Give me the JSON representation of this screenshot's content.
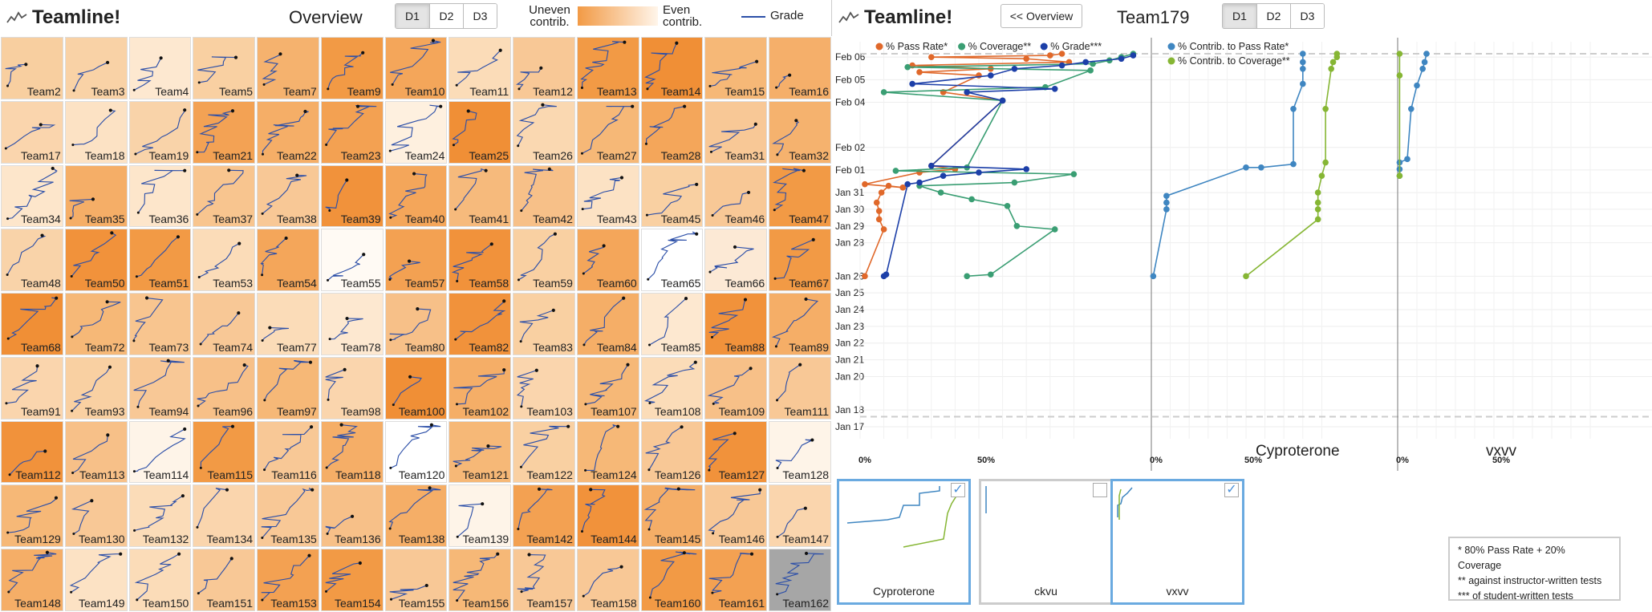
{
  "overview": {
    "brand": "Teamline!",
    "title": "Overview",
    "tabs": [
      "D1",
      "D2",
      "D3"
    ],
    "active_tab": "D1",
    "legend": {
      "uneven": "Uneven contrib.",
      "even": "Even contrib.",
      "grade": "Grade"
    },
    "teams": [
      {
        "name": "Team2",
        "c": "#f8cfa0"
      },
      {
        "name": "Team3",
        "c": "#f9d2a6"
      },
      {
        "name": "Team4",
        "c": "#fde8d0"
      },
      {
        "name": "Team5",
        "c": "#f9d0a2"
      },
      {
        "name": "Team7",
        "c": "#f5b26e"
      },
      {
        "name": "Team9",
        "c": "#f29a45"
      },
      {
        "name": "Team10",
        "c": "#f4a65a"
      },
      {
        "name": "Team11",
        "c": "#fbdcb8"
      },
      {
        "name": "Team12",
        "c": "#f8c896"
      },
      {
        "name": "Team13",
        "c": "#f29a45"
      },
      {
        "name": "Team14",
        "c": "#f08f36"
      },
      {
        "name": "Team15",
        "c": "#f6b877"
      },
      {
        "name": "Team16",
        "c": "#f5af6a"
      },
      {
        "name": "Team17",
        "c": "#fad5ad"
      },
      {
        "name": "Team18",
        "c": "#fce2c4"
      },
      {
        "name": "Team19",
        "c": "#f9d3a9"
      },
      {
        "name": "Team21",
        "c": "#f3a254"
      },
      {
        "name": "Team22",
        "c": "#f5ae67"
      },
      {
        "name": "Team23",
        "c": "#f3a152"
      },
      {
        "name": "Team24",
        "c": "#fef0df"
      },
      {
        "name": "Team25",
        "c": "#f08f36"
      },
      {
        "name": "Team26",
        "c": "#fad8b1"
      },
      {
        "name": "Team27",
        "c": "#f6b877"
      },
      {
        "name": "Team28",
        "c": "#f4a65a"
      },
      {
        "name": "Team31",
        "c": "#f8c896"
      },
      {
        "name": "Team32",
        "c": "#f5b26e"
      },
      {
        "name": "Team34",
        "c": "#fde6cb"
      },
      {
        "name": "Team35",
        "c": "#f5ae67"
      },
      {
        "name": "Team36",
        "c": "#fde6cb"
      },
      {
        "name": "Team37",
        "c": "#f8c58f"
      },
      {
        "name": "Team38",
        "c": "#f8c896"
      },
      {
        "name": "Team39",
        "c": "#f1923b"
      },
      {
        "name": "Team40",
        "c": "#f4a65a"
      },
      {
        "name": "Team41",
        "c": "#f6ba7c"
      },
      {
        "name": "Team42",
        "c": "#f7c088"
      },
      {
        "name": "Team43",
        "c": "#fce2c4"
      },
      {
        "name": "Team45",
        "c": "#f9d0a2"
      },
      {
        "name": "Team46",
        "c": "#f8c896"
      },
      {
        "name": "Team47",
        "c": "#f29a45"
      },
      {
        "name": "Team48",
        "c": "#f9d3a9"
      },
      {
        "name": "Team50",
        "c": "#f1923b"
      },
      {
        "name": "Team51",
        "c": "#f29a45"
      },
      {
        "name": "Team53",
        "c": "#fbdcb8"
      },
      {
        "name": "Team54",
        "c": "#f4a65a"
      },
      {
        "name": "Team55",
        "c": "#fffaf4"
      },
      {
        "name": "Team57",
        "c": "#f3a152"
      },
      {
        "name": "Team58",
        "c": "#f1923b"
      },
      {
        "name": "Team59",
        "c": "#f9d0a2"
      },
      {
        "name": "Team60",
        "c": "#f4a65a"
      },
      {
        "name": "Team65",
        "c": "#ffffff"
      },
      {
        "name": "Team66",
        "c": "#fce9d5"
      },
      {
        "name": "Team67",
        "c": "#f29a45"
      },
      {
        "name": "Team68",
        "c": "#f08f36"
      },
      {
        "name": "Team72",
        "c": "#f6b877"
      },
      {
        "name": "Team73",
        "c": "#f8c58f"
      },
      {
        "name": "Team74",
        "c": "#f8c896"
      },
      {
        "name": "Team77",
        "c": "#fbdcb8"
      },
      {
        "name": "Team78",
        "c": "#fde8d0"
      },
      {
        "name": "Team80",
        "c": "#f7c088"
      },
      {
        "name": "Team82",
        "c": "#f1923b"
      },
      {
        "name": "Team83",
        "c": "#f9d0a2"
      },
      {
        "name": "Team84",
        "c": "#f5ae67"
      },
      {
        "name": "Team85",
        "c": "#fde8d0"
      },
      {
        "name": "Team88",
        "c": "#f1923b"
      },
      {
        "name": "Team89",
        "c": "#f5ae67"
      },
      {
        "name": "Team91",
        "c": "#fad5ad"
      },
      {
        "name": "Team93",
        "c": "#f9d0a2"
      },
      {
        "name": "Team94",
        "c": "#f8c896"
      },
      {
        "name": "Team96",
        "c": "#f7c088"
      },
      {
        "name": "Team97",
        "c": "#f6b877"
      },
      {
        "name": "Team98",
        "c": "#fad5ad"
      },
      {
        "name": "Team100",
        "c": "#f08f36"
      },
      {
        "name": "Team102",
        "c": "#f5ae67"
      },
      {
        "name": "Team103",
        "c": "#fad5ad"
      },
      {
        "name": "Team107",
        "c": "#f6b877"
      },
      {
        "name": "Team108",
        "c": "#fbdcb8"
      },
      {
        "name": "Team109",
        "c": "#f7c088"
      },
      {
        "name": "Team111",
        "c": "#f8c896"
      },
      {
        "name": "Team112",
        "c": "#f1923b"
      },
      {
        "name": "Team113",
        "c": "#f7c088"
      },
      {
        "name": "Team114",
        "c": "#fef4e8"
      },
      {
        "name": "Team115",
        "c": "#f29a45"
      },
      {
        "name": "Team116",
        "c": "#f8c896"
      },
      {
        "name": "Team118",
        "c": "#f5ae67"
      },
      {
        "name": "Team120",
        "c": "#ffffff"
      },
      {
        "name": "Team121",
        "c": "#f6b877"
      },
      {
        "name": "Team122",
        "c": "#f9d0a2"
      },
      {
        "name": "Team124",
        "c": "#f6b877"
      },
      {
        "name": "Team126",
        "c": "#f8c896"
      },
      {
        "name": "Team127",
        "c": "#f1923b"
      },
      {
        "name": "Team128",
        "c": "#fef4e8"
      },
      {
        "name": "Team129",
        "c": "#f6b877"
      },
      {
        "name": "Team130",
        "c": "#f8c896"
      },
      {
        "name": "Team132",
        "c": "#fbdcb8"
      },
      {
        "name": "Team134",
        "c": "#fad5ad"
      },
      {
        "name": "Team135",
        "c": "#f8c896"
      },
      {
        "name": "Team136",
        "c": "#f7c088"
      },
      {
        "name": "Team138",
        "c": "#f5ae67"
      },
      {
        "name": "Team139",
        "c": "#fef4e8"
      },
      {
        "name": "Team142",
        "c": "#f3a152"
      },
      {
        "name": "Team144",
        "c": "#f1923b"
      },
      {
        "name": "Team145",
        "c": "#f5ae67"
      },
      {
        "name": "Team146",
        "c": "#f8c896"
      },
      {
        "name": "Team147",
        "c": "#fad5ad"
      },
      {
        "name": "Team148",
        "c": "#f5ae67"
      },
      {
        "name": "Team149",
        "c": "#fce2c4"
      },
      {
        "name": "Team150",
        "c": "#fbdcb8"
      },
      {
        "name": "Team151",
        "c": "#f8c896"
      },
      {
        "name": "Team153",
        "c": "#f3a152"
      },
      {
        "name": "Team154",
        "c": "#f29a45"
      },
      {
        "name": "Team155",
        "c": "#f8c896"
      },
      {
        "name": "Team156",
        "c": "#f6b877"
      },
      {
        "name": "Team157",
        "c": "#f8c896"
      },
      {
        "name": "Team158",
        "c": "#f8c896"
      },
      {
        "name": "Team160",
        "c": "#f29a45"
      },
      {
        "name": "Team161",
        "c": "#f3a152"
      },
      {
        "name": "Team162",
        "c": "#a6a6a6"
      }
    ]
  },
  "detail": {
    "brand": "Teamline!",
    "back_label": "<< Overview",
    "team": "Team179",
    "tabs": [
      "D1",
      "D2",
      "D3"
    ],
    "active_tab": "D1",
    "colors": {
      "pass": "#e0682a",
      "coverage": "#3a9e73",
      "grade": "#1c3fa8",
      "contrib_pass": "#3f86c1",
      "contrib_cov": "#86b634"
    },
    "thumbs": [
      {
        "name": "Cyproterone",
        "checked": true
      },
      {
        "name": "ckvu",
        "checked": false
      },
      {
        "name": "vxvv",
        "checked": true
      }
    ],
    "notes": [
      "* 80% Pass Rate + 20% Coverage",
      "** against instructor-written tests",
      "*** of student-written tests"
    ]
  },
  "chart_data": [
    {
      "type": "line",
      "title": "",
      "y_axis_dates": [
        "Jan 17",
        "Jan 18",
        "Jan 20",
        "Jan 21",
        "Jan 22",
        "Jan 23",
        "Jan 24",
        "Jan 25",
        "Jan 26",
        "Jan 28",
        "Jan 29",
        "Jan 30",
        "Jan 31",
        "Feb 01",
        "Feb 02",
        "Feb 04",
        "Feb 05",
        "Feb 06"
      ],
      "x_ticks": [
        "0%",
        "50%"
      ],
      "panels": [
        {
          "name": "",
          "legend": [
            "% Pass Rate*",
            "% Coverage**",
            "% Grade***"
          ],
          "series": [
            {
              "name": "% Pass Rate*",
              "color_key": "pass",
              "points": [
                [
                  2,
                  26.0
                ],
                [
                  10,
                  28.8
                ],
                [
                  8,
                  29.4
                ],
                [
                  8,
                  29.9
                ],
                [
                  7,
                  30.4
                ],
                [
                  9,
                  31.0
                ],
                [
                  12,
                  31.4
                ],
                [
                  18,
                  31.3
                ],
                [
                  2,
                  31.5
                ],
                [
                  25,
                  32.2
                ],
                [
                  40,
                  32.4
                ],
                [
                  30,
                  32.6
                ],
                [
                  60,
                  36.5
                ],
                [
                  35,
                  37.0
                ],
                [
                  50,
                  38.0
                ],
                [
                  25,
                  38.2
                ],
                [
                  55,
                  38.4
                ],
                [
                  22,
                  38.6
                ],
                [
                  88,
                  38.8
                ],
                [
                  70,
                  39.0
                ],
                [
                  30,
                  39.1
                ],
                [
                  80,
                  39.2
                ],
                [
                  85,
                  39.3
                ]
              ]
            },
            {
              "name": "% Coverage**",
              "color_key": "coverage",
              "points": [
                [
                  45,
                  26.0
                ],
                [
                  55,
                  26.1
                ],
                [
                  82,
                  28.8
                ],
                [
                  66,
                  29.0
                ],
                [
                  62,
                  30.2
                ],
                [
                  47,
                  30.6
                ],
                [
                  34,
                  31.0
                ],
                [
                  25,
                  31.4
                ],
                [
                  65,
                  31.6
                ],
                [
                  90,
                  32.1
                ],
                [
                  15,
                  32.3
                ],
                [
                  45,
                  32.5
                ],
                [
                  60,
                  36.5
                ],
                [
                  10,
                  37.0
                ],
                [
                  78,
                  37.3
                ],
                [
                  97,
                  38.3
                ],
                [
                  20,
                  38.5
                ],
                [
                  98,
                  38.7
                ],
                [
                  105,
                  38.9
                ],
                [
                  110,
                  39.1
                ],
                [
                  115,
                  39.3
                ]
              ]
            },
            {
              "name": "% Grade***",
              "color_key": "grade",
              "points": [
                [
                  10,
                  26.0
                ],
                [
                  11,
                  26.1
                ],
                [
                  20,
                  31.5
                ],
                [
                  25,
                  31.6
                ],
                [
                  35,
                  32.0
                ],
                [
                  50,
                  32.2
                ],
                [
                  70,
                  32.4
                ],
                [
                  30,
                  32.6
                ],
                [
                  60,
                  36.5
                ],
                [
                  45,
                  37.0
                ],
                [
                  82,
                  37.2
                ],
                [
                  22,
                  37.5
                ],
                [
                  55,
                  38.0
                ],
                [
                  65,
                  38.4
                ],
                [
                  85,
                  38.6
                ],
                [
                  95,
                  38.8
                ],
                [
                  110,
                  39.0
                ],
                [
                  115,
                  39.2
                ]
              ]
            }
          ]
        },
        {
          "name": "Cyproterone",
          "legend": [
            "% Contrib. to Pass Rate*",
            "% Contrib. to Coverage**"
          ],
          "series": [
            {
              "name": "% Contrib. to Pass Rate*",
              "color_key": "contrib_pass",
              "points": [
                [
                  1,
                  26.0
                ],
                [
                  8,
                  30.0
                ],
                [
                  8,
                  30.4
                ],
                [
                  8,
                  30.8
                ],
                [
                  50,
                  32.5
                ],
                [
                  58,
                  32.5
                ],
                [
                  75,
                  32.7
                ],
                [
                  75,
                  36.0
                ],
                [
                  80,
                  37.5
                ],
                [
                  80,
                  38.4
                ],
                [
                  80,
                  38.8
                ],
                [
                  80,
                  39.3
                ]
              ]
            },
            {
              "name": "% Contrib. to Coverage**",
              "color_key": "contrib_cov",
              "points": [
                [
                  50,
                  26.0
                ],
                [
                  88,
                  29.4
                ],
                [
                  88,
                  30.0
                ],
                [
                  88,
                  30.4
                ],
                [
                  88,
                  31.0
                ],
                [
                  90,
                  32.0
                ],
                [
                  92,
                  32.8
                ],
                [
                  92,
                  36.0
                ],
                [
                  95,
                  38.4
                ],
                [
                  96,
                  38.8
                ],
                [
                  98,
                  39.1
                ],
                [
                  98,
                  39.3
                ]
              ]
            }
          ]
        },
        {
          "name": "vxvv",
          "legend": [],
          "series": [
            {
              "name": "",
              "color_key": "contrib_pass",
              "points": [
                [
                  1,
                  32.0
                ],
                [
                  1,
                  32.4
                ],
                [
                  1,
                  32.8
                ],
                [
                  5,
                  33.0
                ],
                [
                  7,
                  36.0
                ],
                [
                  10,
                  37.4
                ],
                [
                  13,
                  38.4
                ],
                [
                  14,
                  38.8
                ],
                [
                  15,
                  39.3
                ]
              ]
            },
            {
              "name": "",
              "color_key": "contrib_cov",
              "points": [
                [
                  1,
                  32.0
                ],
                [
                  1,
                  38.0
                ],
                [
                  1,
                  39.3
                ]
              ]
            }
          ]
        }
      ]
    }
  ]
}
